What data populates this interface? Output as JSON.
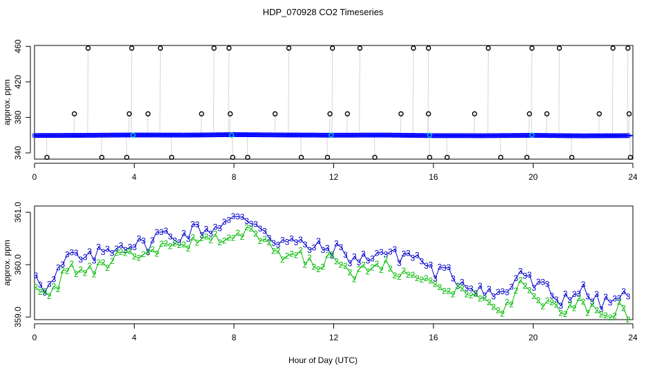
{
  "title": "HDP_070928  CO2 Timeseries",
  "xlabel": "Hour of Day (UTC)",
  "colors": {
    "points": "#0000ff",
    "tier3": "#0000cc",
    "tier2": "#00bb00",
    "line": "#aaaaaa",
    "highlight": "#00cccc",
    "outlier": "#000000"
  },
  "chart_data": [
    {
      "type": "line",
      "ylabel": "approx. ppm",
      "xlim": [
        0,
        24
      ],
      "ylim": [
        333,
        461
      ],
      "xticks": [
        "0",
        "4",
        "8",
        "12",
        "16",
        "20",
        "24"
      ],
      "yticks": [
        "340",
        "380",
        "420",
        "460"
      ],
      "baseline": [
        [
          0,
          359.6
        ],
        [
          2,
          359.8
        ],
        [
          4,
          360.2
        ],
        [
          6,
          360.0
        ],
        [
          8,
          360.6
        ],
        [
          10,
          360.2
        ],
        [
          12,
          359.9
        ],
        [
          14,
          360.1
        ],
        [
          16,
          359.5
        ],
        [
          18,
          359.4
        ],
        [
          20,
          359.8
        ],
        [
          22,
          359.2
        ],
        [
          24,
          359.5
        ]
      ],
      "outliers_high": [
        [
          2.15,
          458
        ],
        [
          3.9,
          458
        ],
        [
          5.05,
          458
        ],
        [
          7.2,
          458
        ],
        [
          7.8,
          458
        ],
        [
          10.2,
          458
        ],
        [
          11.95,
          458
        ],
        [
          13.05,
          458
        ],
        [
          15.2,
          458
        ],
        [
          15.8,
          458
        ],
        [
          18.2,
          458
        ],
        [
          19.95,
          458
        ],
        [
          21.05,
          458
        ],
        [
          23.2,
          458
        ],
        [
          23.8,
          458
        ]
      ],
      "outliers_mid": [
        [
          1.6,
          384
        ],
        [
          3.8,
          384
        ],
        [
          4.55,
          384
        ],
        [
          6.7,
          384
        ],
        [
          7.85,
          384
        ],
        [
          9.65,
          384
        ],
        [
          11.85,
          384
        ],
        [
          12.55,
          384
        ],
        [
          14.7,
          384
        ],
        [
          15.8,
          384
        ],
        [
          17.65,
          384
        ],
        [
          19.85,
          384
        ],
        [
          20.55,
          384
        ],
        [
          22.65,
          384
        ],
        [
          23.85,
          384
        ]
      ],
      "outliers_low": [
        [
          0.5,
          335
        ],
        [
          2.7,
          335
        ],
        [
          3.7,
          335
        ],
        [
          5.5,
          335
        ],
        [
          7.95,
          335
        ],
        [
          8.55,
          335
        ],
        [
          10.7,
          335
        ],
        [
          11.75,
          335
        ],
        [
          13.65,
          335
        ],
        [
          15.85,
          335
        ],
        [
          16.55,
          335
        ],
        [
          18.7,
          335
        ],
        [
          19.75,
          335
        ],
        [
          21.55,
          335
        ],
        [
          23.9,
          335
        ]
      ],
      "highlights": [
        [
          3.95,
          360
        ],
        [
          7.9,
          360
        ],
        [
          11.9,
          360
        ],
        [
          15.85,
          360
        ],
        [
          19.95,
          360
        ]
      ]
    },
    {
      "type": "line",
      "ylabel": "approx. ppm",
      "xlim": [
        0,
        24
      ],
      "ylim": [
        358.95,
        361.12
      ],
      "xticks": [
        "0",
        "4",
        "8",
        "12",
        "16",
        "20",
        "24"
      ],
      "yticks": [
        "359.0",
        "360.0",
        "361.0"
      ],
      "series": [
        {
          "marker": "3",
          "x": [
            0,
            0.5,
            1,
            1.5,
            2,
            2.5,
            3,
            3.5,
            4,
            4.5,
            5,
            5.5,
            6,
            6.5,
            7,
            7.5,
            8,
            8.5,
            9,
            9.5,
            10,
            10.5,
            11,
            11.5,
            12,
            12.5,
            13,
            13.5,
            14,
            14.5,
            15,
            15.5,
            16,
            16.5,
            17,
            17.5,
            18,
            18.5,
            19,
            19.5,
            20,
            20.5,
            21,
            21.5,
            22,
            22.5,
            23,
            23.5,
            23.8
          ],
          "values": [
            359.9,
            359.5,
            359.9,
            360.2,
            360.05,
            360.2,
            360.3,
            360.4,
            360.4,
            360.35,
            360.6,
            360.55,
            360.55,
            360.7,
            360.65,
            360.8,
            360.85,
            360.85,
            360.8,
            360.5,
            360.45,
            360.4,
            360.35,
            360.3,
            360.3,
            360.2,
            360.05,
            360.2,
            360.25,
            360.15,
            360.2,
            360.1,
            359.85,
            359.85,
            359.7,
            359.6,
            359.55,
            359.4,
            359.5,
            359.9,
            359.6,
            359.55,
            359.3,
            359.45,
            359.5,
            359.3,
            359.25,
            359.4,
            359.35
          ]
        },
        {
          "marker": "2",
          "x": [
            0,
            0.5,
            1,
            1.5,
            2,
            2.5,
            3,
            3.5,
            4,
            4.5,
            5,
            5.5,
            6,
            6.5,
            7,
            7.5,
            8,
            8.5,
            9,
            9.5,
            10,
            10.5,
            11,
            11.5,
            12,
            12.5,
            13,
            13.5,
            14,
            14.5,
            15,
            15.5,
            16,
            16.5,
            17,
            17.5,
            18,
            18.5,
            19,
            19.5,
            20,
            20.5,
            21,
            21.5,
            22,
            22.5,
            23,
            23.5,
            23.8
          ],
          "values": [
            359.7,
            359.35,
            359.7,
            359.95,
            359.8,
            359.95,
            360.05,
            360.15,
            360.15,
            360.1,
            360.35,
            360.3,
            360.3,
            360.45,
            360.4,
            360.55,
            360.6,
            360.6,
            360.55,
            360.25,
            360.2,
            360.15,
            360.1,
            360.05,
            360.05,
            359.95,
            359.8,
            359.95,
            360.0,
            359.9,
            359.95,
            359.85,
            359.6,
            359.6,
            359.45,
            359.35,
            359.3,
            359.15,
            359.25,
            359.65,
            359.35,
            359.3,
            359.05,
            359.2,
            359.25,
            359.05,
            359.0,
            359.15,
            359.1
          ]
        }
      ]
    }
  ]
}
